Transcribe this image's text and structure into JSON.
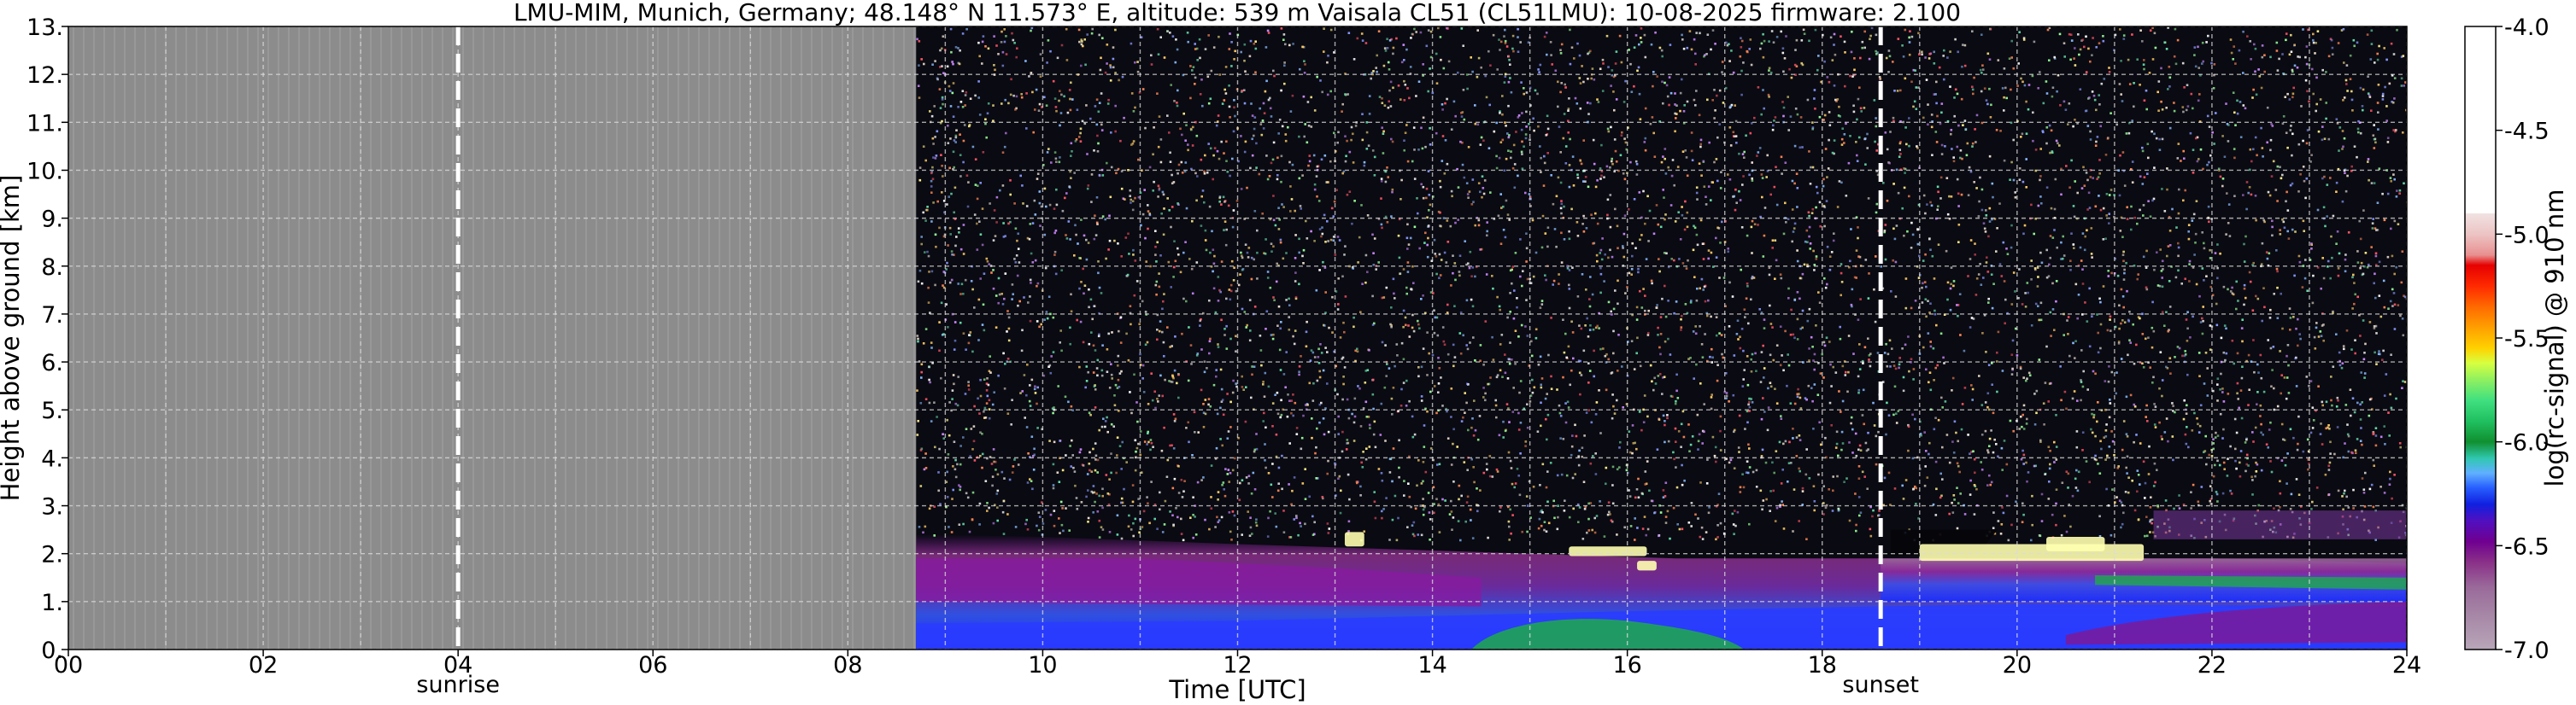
{
  "chart_data": {
    "type": "heatmap",
    "title": "LMU-MIM, Munich, Germany; 48.148° N 11.573° E, altitude: 539 m    Vaisala CL51 (CL51LMU): 10-08-2025    firmware: 2.100",
    "xlabel": "Time [UTC]",
    "ylabel": "Height above ground [km]",
    "colorbar_label": "log(rc-signal) @ 910 nm",
    "xlim": [
      0,
      24
    ],
    "ylim": [
      0,
      13
    ],
    "clim": [
      -7.0,
      -4.0
    ],
    "x_ticks": [
      "00",
      "02",
      "04",
      "06",
      "08",
      "10",
      "12",
      "14",
      "16",
      "18",
      "20",
      "22",
      "24"
    ],
    "y_ticks": [
      "0.",
      "1.",
      "2.",
      "3.",
      "4.",
      "5.",
      "6.",
      "7.",
      "8.",
      "9.",
      "10.",
      "11.",
      "12.",
      "13."
    ],
    "colorbar_ticks": [
      "-4.0",
      "-4.5",
      "-5.0",
      "-5.5",
      "-6.0",
      "-6.5",
      "-7.0"
    ],
    "grid": true,
    "no_data_until_hour": 8.7,
    "markers": [
      {
        "label": "sunrise",
        "time": 4.0
      },
      {
        "label": "sunset",
        "time": 18.6
      }
    ],
    "colors": {
      "no_data": "#8c8c8c",
      "background_noise": "#0a0a12",
      "boundary_layer": "#2a3cff",
      "residual_layer": "#7a1a9a",
      "aerosol_green": "#1faa4a",
      "cloud": "#ffffb0",
      "marker_line": "#ffffff"
    },
    "colormap": [
      {
        "v": -4.0,
        "c": "#ffffff"
      },
      {
        "v": -4.9,
        "c": "#ffffff"
      },
      {
        "v": -4.9,
        "c": "#f1e2e2"
      },
      {
        "v": -5.0,
        "c": "#ecc4c4"
      },
      {
        "v": -5.1,
        "c": "#e89090"
      },
      {
        "v": -5.15,
        "c": "#e60000"
      },
      {
        "v": -5.25,
        "c": "#ff2a00"
      },
      {
        "v": -5.35,
        "c": "#ff6a00"
      },
      {
        "v": -5.45,
        "c": "#ffa000"
      },
      {
        "v": -5.55,
        "c": "#ffd200"
      },
      {
        "v": -5.62,
        "c": "#d8ff40"
      },
      {
        "v": -5.7,
        "c": "#90f060"
      },
      {
        "v": -5.8,
        "c": "#40e080"
      },
      {
        "v": -5.9,
        "c": "#20c060"
      },
      {
        "v": -6.0,
        "c": "#109030"
      },
      {
        "v": -6.08,
        "c": "#30c8b0"
      },
      {
        "v": -6.15,
        "c": "#60b0ff"
      },
      {
        "v": -6.22,
        "c": "#2860ff"
      },
      {
        "v": -6.3,
        "c": "#1020e0"
      },
      {
        "v": -6.38,
        "c": "#5010c0"
      },
      {
        "v": -6.48,
        "c": "#700090"
      },
      {
        "v": -6.58,
        "c": "#8a3088"
      },
      {
        "v": -6.7,
        "c": "#9a6a9a"
      },
      {
        "v": -6.85,
        "c": "#a88aa8"
      },
      {
        "v": -7.0,
        "c": "#b8a6b8"
      }
    ]
  }
}
